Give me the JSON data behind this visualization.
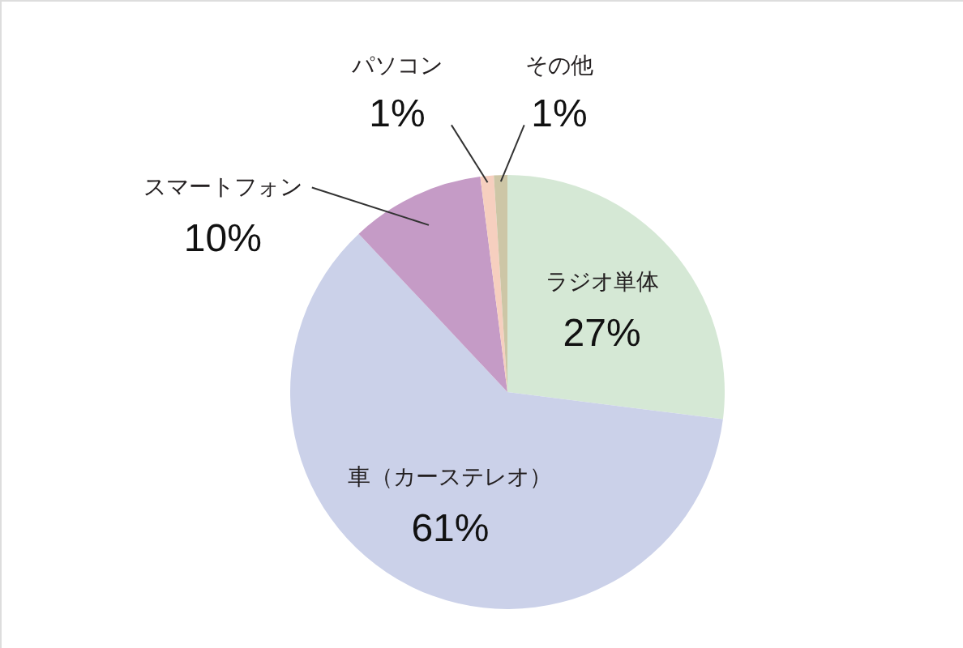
{
  "chart_data": {
    "type": "pie",
    "categories": [
      "ラジオ単体",
      "車（カーステレオ）",
      "スマートフォン",
      "パソコン",
      "その他"
    ],
    "values": [
      27,
      61,
      10,
      1,
      1
    ],
    "colors": [
      "#d5e8d5",
      "#cbd1e9",
      "#c59bc6",
      "#f6cfbf",
      "#cdc6a6"
    ],
    "value_labels": [
      "27%",
      "61%",
      "10%",
      "1%",
      "1%"
    ]
  }
}
